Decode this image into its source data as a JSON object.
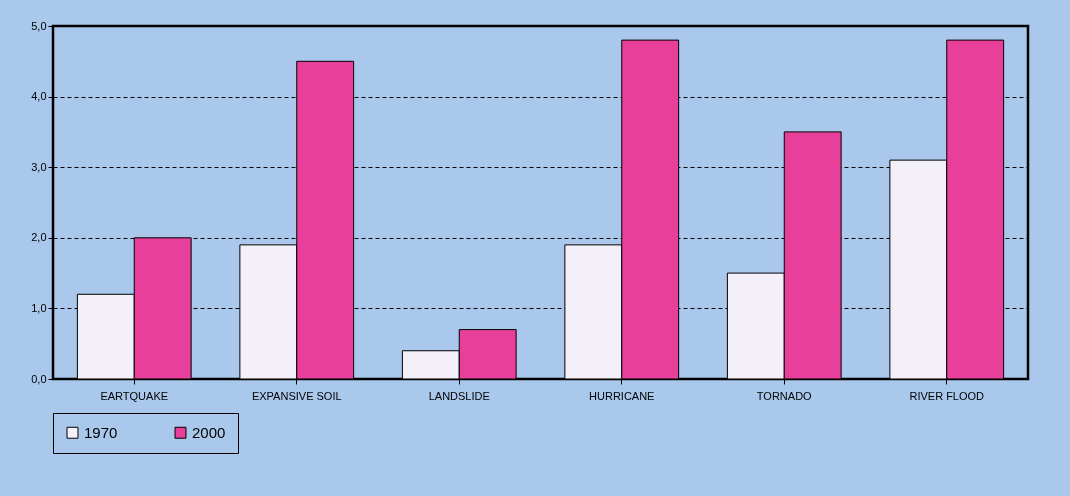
{
  "chart_data": {
    "type": "bar",
    "categories": [
      "EARTQUAKE",
      "EXPANSIVE SOIL",
      "LANDSLIDE",
      "HURRICANE",
      "TORNADO",
      "RIVER FLOOD"
    ],
    "series": [
      {
        "name": "1970",
        "color": "#f4f0fa",
        "values": [
          1.2,
          1.9,
          0.4,
          1.9,
          1.5,
          3.1
        ]
      },
      {
        "name": "2000",
        "color": "#e8409a",
        "values": [
          2.0,
          4.5,
          0.7,
          4.8,
          3.5,
          4.8
        ]
      }
    ],
    "ylim": [
      0,
      5
    ],
    "yticks": [
      {
        "value": 0,
        "label": "0,0"
      },
      {
        "value": 1,
        "label": "1,0"
      },
      {
        "value": 2,
        "label": "2,0"
      },
      {
        "value": 3,
        "label": "3,0"
      },
      {
        "value": 4,
        "label": "4,0"
      },
      {
        "value": 5,
        "label": "5,0"
      }
    ],
    "grid": "y",
    "legend": "bottom"
  }
}
